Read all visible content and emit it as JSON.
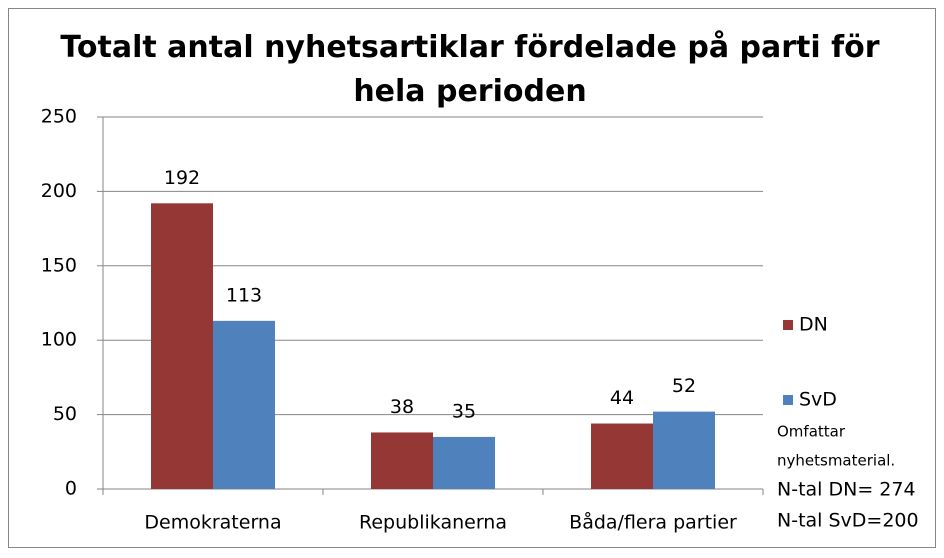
{
  "chart_data": {
    "type": "bar",
    "title": "Totalt antal nyhetsartiklar fördelade på parti för hela perioden",
    "categories": [
      "Demokraterna",
      "Republikanerna",
      "Båda/flera partier"
    ],
    "series": [
      {
        "name": "DN",
        "color": "#953735",
        "values": [
          192,
          38,
          44
        ]
      },
      {
        "name": "SvD",
        "color": "#4f81bd",
        "values": [
          113,
          35,
          52
        ]
      }
    ],
    "ylim": [
      0,
      250
    ],
    "yticks": [
      0,
      50,
      100,
      150,
      200,
      250
    ],
    "grid": true,
    "legend": "right",
    "annotations": [
      "Omfattar",
      "nyhetsmaterial.",
      "N-tal DN= 274",
      "N-tal SvD=200"
    ]
  }
}
